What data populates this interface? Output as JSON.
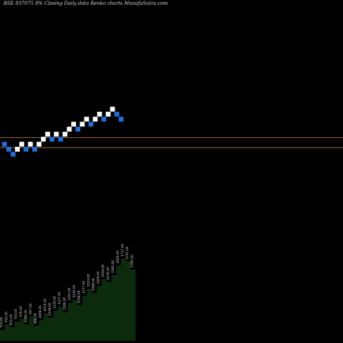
{
  "header": {
    "code": "BSE 937075 8%",
    "tag": "Closing Daily data",
    "chart_kind": "Renko",
    "site": "charts MunafaSutra.com"
  },
  "colors": {
    "background": "#000000",
    "up_brick": "#ffffff",
    "down_brick": "#1e6fe0",
    "line": "#b5651d",
    "volume_fill": "#0c2a0c",
    "text": "#e0e0e0"
  },
  "chart_data": {
    "type": "renko",
    "bricks": [
      {
        "x": 0,
        "level": 9,
        "dir": "down"
      },
      {
        "x": 1,
        "level": 8,
        "dir": "down"
      },
      {
        "x": 2,
        "level": 7,
        "dir": "down"
      },
      {
        "x": 3,
        "level": 8,
        "dir": "up"
      },
      {
        "x": 4,
        "level": 9,
        "dir": "up"
      },
      {
        "x": 5,
        "level": 8,
        "dir": "down"
      },
      {
        "x": 6,
        "level": 9,
        "dir": "up"
      },
      {
        "x": 7,
        "level": 8,
        "dir": "down"
      },
      {
        "x": 8,
        "level": 9,
        "dir": "up"
      },
      {
        "x": 9,
        "level": 10,
        "dir": "up"
      },
      {
        "x": 10,
        "level": 11,
        "dir": "up"
      },
      {
        "x": 11,
        "level": 10,
        "dir": "down"
      },
      {
        "x": 12,
        "level": 11,
        "dir": "up"
      },
      {
        "x": 13,
        "level": 10,
        "dir": "down"
      },
      {
        "x": 14,
        "level": 11,
        "dir": "up"
      },
      {
        "x": 15,
        "level": 12,
        "dir": "up"
      },
      {
        "x": 16,
        "level": 13,
        "dir": "up"
      },
      {
        "x": 17,
        "level": 12,
        "dir": "down"
      },
      {
        "x": 18,
        "level": 13,
        "dir": "up"
      },
      {
        "x": 19,
        "level": 14,
        "dir": "up"
      },
      {
        "x": 20,
        "level": 13,
        "dir": "down"
      },
      {
        "x": 21,
        "level": 14,
        "dir": "up"
      },
      {
        "x": 22,
        "level": 15,
        "dir": "up"
      },
      {
        "x": 23,
        "level": 14,
        "dir": "down"
      },
      {
        "x": 24,
        "level": 15,
        "dir": "up"
      },
      {
        "x": 25,
        "level": 16,
        "dir": "up"
      },
      {
        "x": 26,
        "level": 15,
        "dir": "down"
      },
      {
        "x": 27,
        "level": 14,
        "dir": "down"
      }
    ],
    "reference_lines": [
      11,
      9
    ],
    "volume": {
      "values": [
        8,
        12,
        10,
        14,
        16,
        12,
        18,
        11,
        15,
        20,
        17,
        22,
        25,
        21,
        28,
        30,
        26,
        33,
        38,
        35,
        40,
        45,
        43,
        48,
        55,
        60,
        58,
        52
      ],
      "labels": [
        "723.00",
        "912.00",
        "931.00",
        "753.00",
        "970.00",
        "1080.00",
        "957.00",
        "966.00",
        "1009.00",
        "1013.00",
        "1108.00",
        "1135.00",
        "1127.00",
        "1199.00",
        "1201.00",
        "1234.00",
        "1256.00",
        "1277.00",
        "1333.00",
        "1398.00",
        "1409.00",
        "1454.00",
        "1476.00",
        "1565.00",
        "1620.00",
        "1717.00",
        "1757.00",
        "1782.00"
      ]
    }
  }
}
